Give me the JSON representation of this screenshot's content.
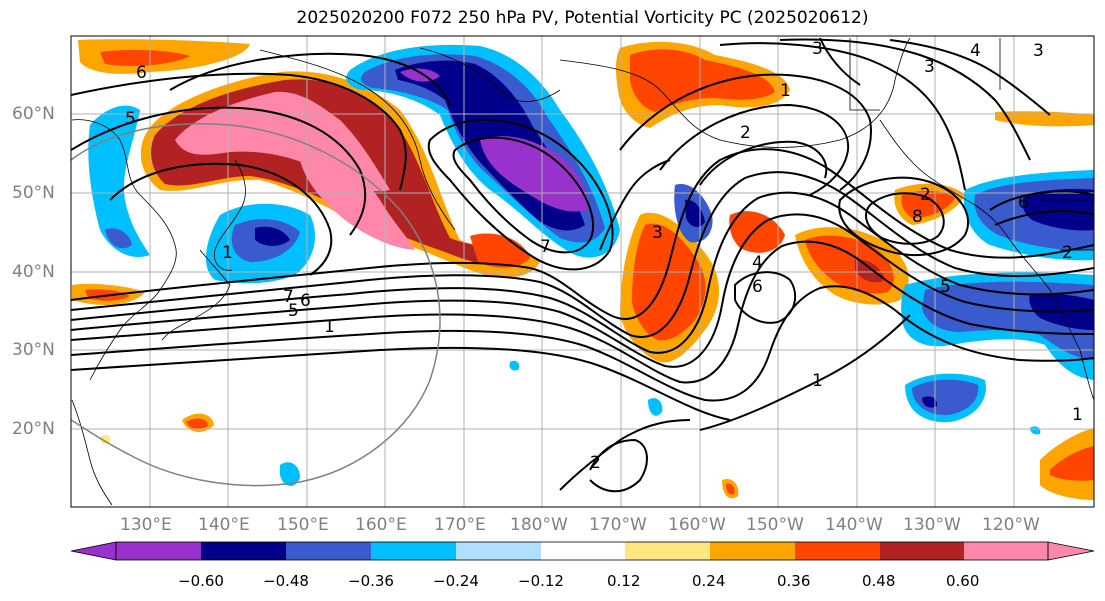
{
  "title": "2025020200 F072 250 hPa PV, Potential Vorticity PC (2025020612)",
  "lat_labels": [
    "60°N",
    "50°N",
    "40°N",
    "30°N",
    "20°N"
  ],
  "lon_labels": [
    "130°E",
    "140°E",
    "150°E",
    "160°E",
    "170°E",
    "180°W",
    "170°W",
    "160°W",
    "150°W",
    "140°W",
    "130°W",
    "120°W"
  ],
  "colorbar": {
    "colors": [
      "#9932CC",
      "#00008B",
      "#3A5BCD",
      "#00BFFF",
      "#B0E0FF",
      "#FFFFFF",
      "#FFE680",
      "#FFA500",
      "#FF4500",
      "#B22222",
      "#FF88AA"
    ],
    "tick_labels": [
      "−0.60",
      "−0.48",
      "−0.36",
      "−0.24",
      "−0.12",
      "0.12",
      "0.24",
      "0.36",
      "0.48",
      "0.60"
    ]
  },
  "contour_labels": [
    "6",
    "5",
    "3",
    "4",
    "3",
    "3",
    "1",
    "2",
    "1",
    "5",
    "2",
    "4",
    "6",
    "8",
    "6",
    "6",
    "5",
    "7",
    "1",
    "2",
    "3",
    "1",
    "7",
    "1",
    "2"
  ]
}
